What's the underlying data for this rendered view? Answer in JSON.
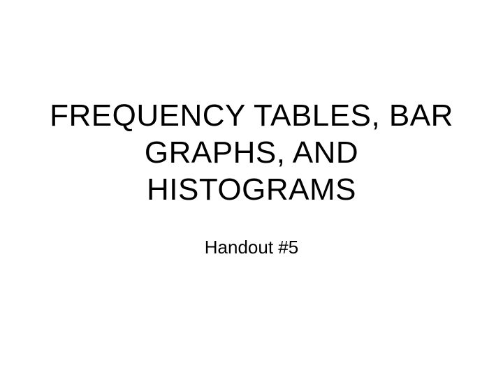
{
  "slide": {
    "title": "FREQUENCY TABLES, BAR GRAPHS, AND HISTOGRAMS",
    "subtitle": "Handout #5",
    "background_color": "#ffffff",
    "text_color": "#000000",
    "title_fontsize": 44,
    "subtitle_fontsize": 26,
    "font_family": "Arial"
  }
}
